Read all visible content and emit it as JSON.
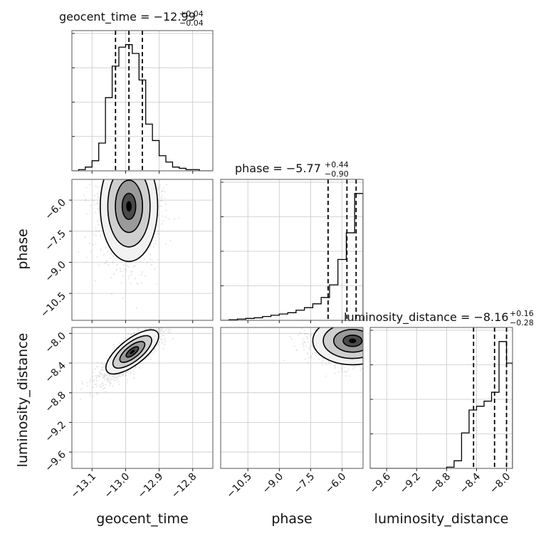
{
  "chart_data": {
    "type": "corner",
    "parameters": [
      {
        "key": "geocent_time",
        "axis_label": "geocent_time",
        "title": "geocent_time = −12.99",
        "title_sup": "+0.04",
        "title_sub": "−0.04",
        "median": -12.99,
        "quantiles": [
          -13.03,
          -12.99,
          -12.95
        ],
        "ticks": [
          -13.1,
          -13.0,
          -12.9,
          -12.8
        ],
        "tick_labels": [
          "−13.1",
          "−13.0",
          "−12.9",
          "−12.8"
        ],
        "range": [
          -13.16,
          -12.74
        ],
        "hist_x": [
          -13.16,
          -13.14,
          -13.12,
          -13.1,
          -13.08,
          -13.06,
          -13.04,
          -13.02,
          -13.0,
          -12.98,
          -12.96,
          -12.94,
          -12.92,
          -12.9,
          -12.88,
          -12.86,
          -12.84,
          -12.82,
          -12.8,
          -12.78,
          -12.76,
          -12.74
        ],
        "hist_values": [
          0,
          0.01,
          0.03,
          0.08,
          0.22,
          0.58,
          0.83,
          0.98,
          1.0,
          0.93,
          0.72,
          0.37,
          0.24,
          0.12,
          0.07,
          0.03,
          0.02,
          0.01,
          0.01,
          0,
          0
        ]
      },
      {
        "key": "phase",
        "axis_label": "phase",
        "title": "phase = −5.77",
        "title_sup": "+0.44",
        "title_sub": "−0.90",
        "median": -5.77,
        "quantiles": [
          -6.67,
          -5.77,
          -5.33
        ],
        "ticks": [
          -10.5,
          -9.0,
          -7.5,
          -6.0
        ],
        "tick_labels": [
          "−10.5",
          "−9.0",
          "−7.5",
          "−6.0"
        ],
        "range": [
          -11.8,
          -5.0
        ],
        "hist_x": [
          -11.8,
          -11.4,
          -11.0,
          -10.6,
          -10.2,
          -9.8,
          -9.4,
          -9.0,
          -8.6,
          -8.2,
          -7.8,
          -7.4,
          -7.0,
          -6.6,
          -6.2,
          -5.8,
          -5.4,
          -5.0
        ],
        "hist_values": [
          0,
          0.005,
          0.01,
          0.015,
          0.02,
          0.03,
          0.04,
          0.05,
          0.06,
          0.08,
          0.1,
          0.13,
          0.18,
          0.28,
          0.48,
          0.69,
          1.0
        ]
      },
      {
        "key": "luminosity_distance",
        "axis_label": "luminosity_distance",
        "title": "luminosity_distance = −8.16",
        "title_sup": "+0.16",
        "title_sub": "−0.28",
        "median": -8.16,
        "quantiles": [
          -8.44,
          -8.16,
          -8.0
        ],
        "ticks": [
          -9.6,
          -9.2,
          -8.8,
          -8.4,
          -8.0
        ],
        "tick_labels": [
          "−9.6",
          "−9.2",
          "−8.8",
          "−8.4",
          "−8.0"
        ],
        "range": [
          -9.82,
          -7.92
        ],
        "hist_x": [
          -9.82,
          -8.8,
          -8.7,
          -8.6,
          -8.5,
          -8.4,
          -8.3,
          -8.2,
          -8.1,
          -8.0,
          -7.92
        ],
        "hist_values": [
          0,
          0.01,
          0.06,
          0.28,
          0.46,
          0.49,
          0.53,
          0.6,
          1.0,
          0.83
        ]
      }
    ],
    "scatter_sample_regions": [
      {
        "x": "geocent_time",
        "y": "phase",
        "center": [
          -12.99,
          -6.3
        ],
        "spread": [
          0.045,
          1.4
        ],
        "truncate_y_max": -5.2
      },
      {
        "x": "geocent_time",
        "y": "luminosity_distance",
        "center": [
          -12.98,
          -8.25
        ],
        "spread": [
          0.05,
          0.2
        ],
        "correlation": 0.85
      },
      {
        "x": "phase",
        "y": "luminosity_distance",
        "center": [
          -5.5,
          -8.1
        ],
        "spread": [
          1.0,
          0.17
        ]
      }
    ]
  }
}
